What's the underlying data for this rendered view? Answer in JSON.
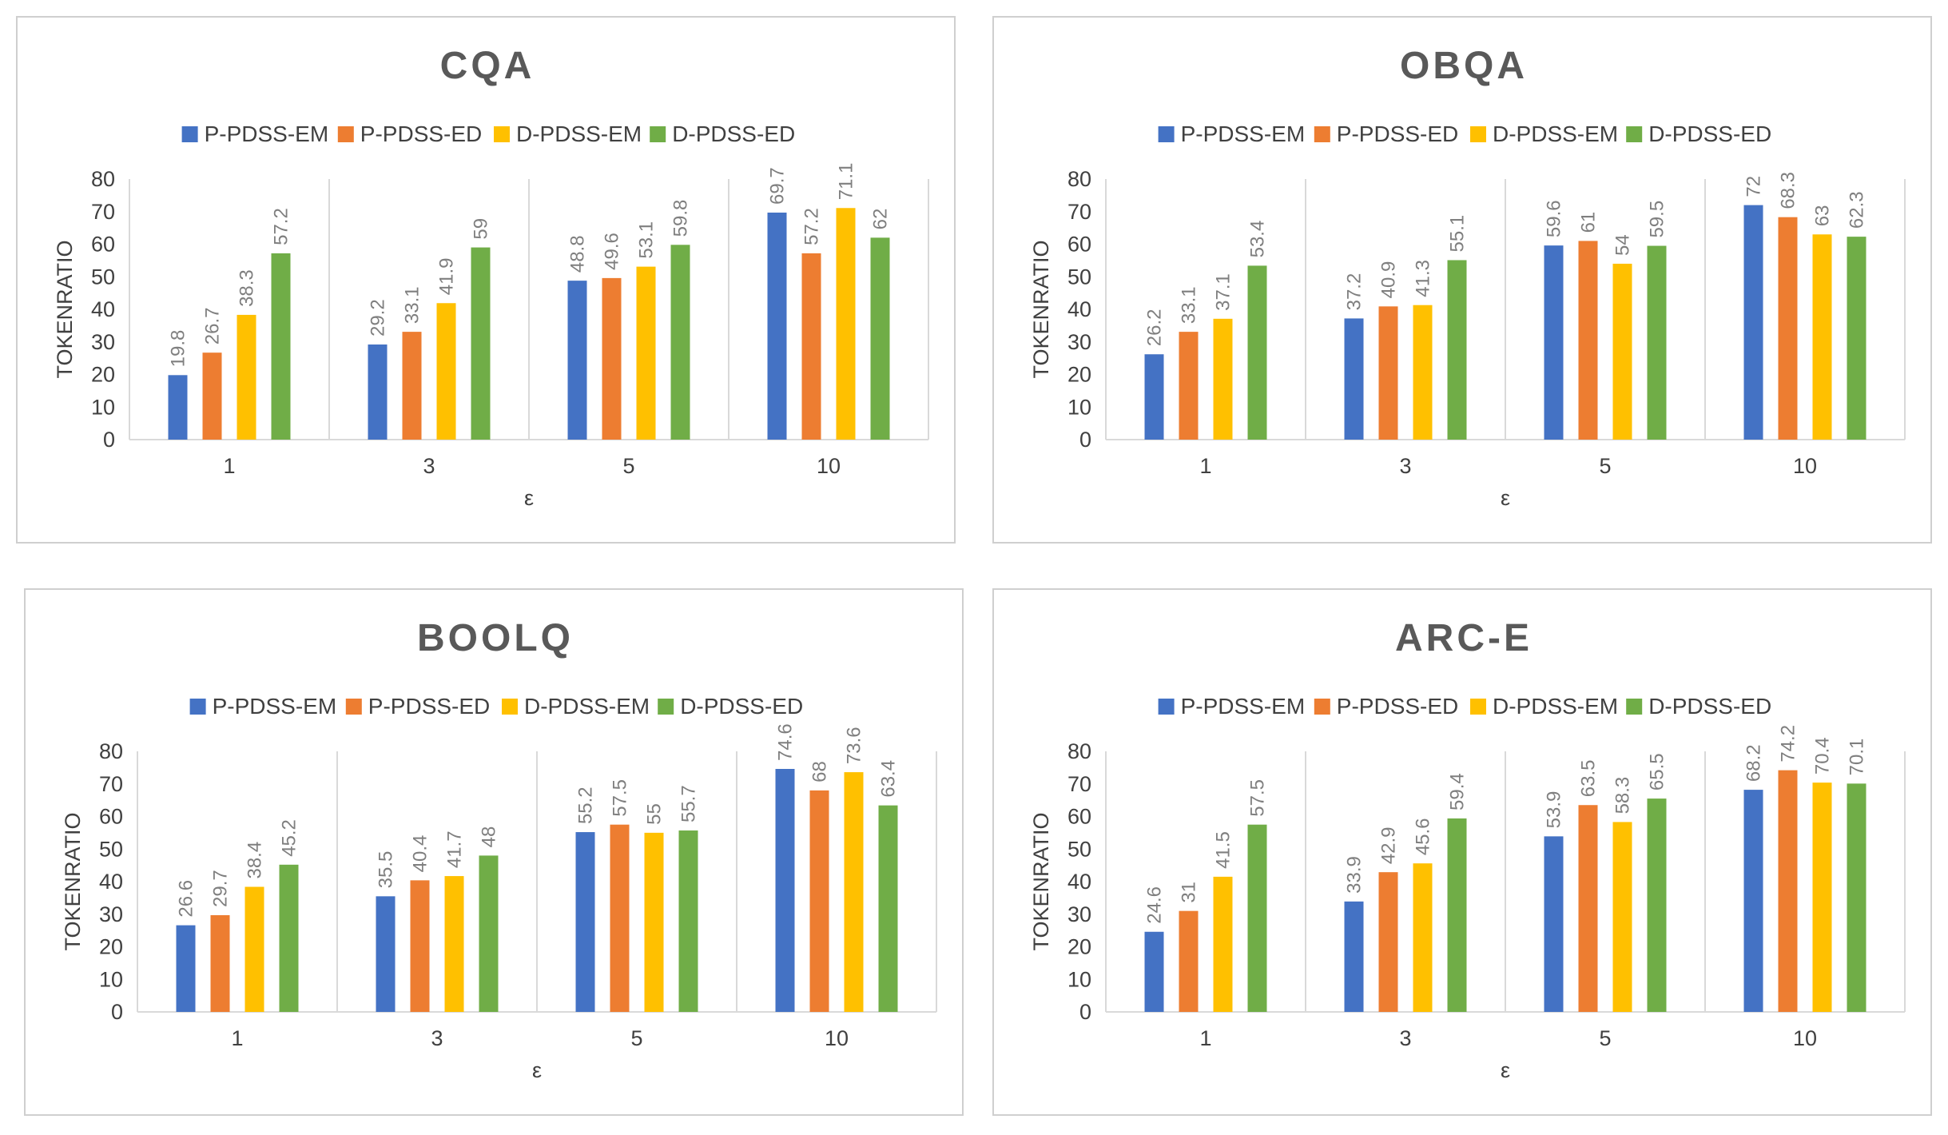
{
  "colors": {
    "P-PDSS-EM": "#4472C4",
    "P-PDSS-ED": "#ED7D31",
    "D-PDSS-EM": "#FFC000",
    "D-PDSS-ED": "#70AD47",
    "title": "#595959",
    "axis_text": "#404040",
    "data_label": "#7f7f7f",
    "grid": "#d9d9d9"
  },
  "chart_data": [
    {
      "type": "bar",
      "title": "CQA",
      "xlabel": "ε",
      "ylabel": "TOKENRATIO",
      "ylim": [
        0,
        80
      ],
      "yticks": [
        "0",
        "10",
        "20",
        "30",
        "40",
        "50",
        "60",
        "70",
        "80"
      ],
      "categories": [
        "1",
        "3",
        "5",
        "10"
      ],
      "legend_position": "top-center",
      "series": [
        {
          "name": "P-PDSS-EM",
          "values": [
            19.8,
            29.2,
            48.8,
            69.7
          ],
          "labels": [
            "19.8",
            "29.2",
            "48.8",
            "69.7"
          ]
        },
        {
          "name": "P-PDSS-ED",
          "values": [
            26.7,
            33.1,
            49.6,
            57.2
          ],
          "labels": [
            "26.7",
            "33.1",
            "49.6",
            "57.2"
          ]
        },
        {
          "name": "D-PDSS-EM",
          "values": [
            38.3,
            41.9,
            53.1,
            71.1
          ],
          "labels": [
            "38.3",
            "41.9",
            "53.1",
            "71.1"
          ]
        },
        {
          "name": "D-PDSS-ED",
          "values": [
            57.2,
            59,
            59.8,
            62
          ],
          "labels": [
            "57.2",
            "59",
            "59.8",
            "62"
          ]
        }
      ]
    },
    {
      "type": "bar",
      "title": "OBQA",
      "xlabel": "ε",
      "ylabel": "TOKENRATIO",
      "ylim": [
        0,
        80
      ],
      "yticks": [
        "0",
        "10",
        "20",
        "30",
        "40",
        "50",
        "60",
        "70",
        "80"
      ],
      "categories": [
        "1",
        "3",
        "5",
        "10"
      ],
      "legend_position": "top-center",
      "series": [
        {
          "name": "P-PDSS-EM",
          "values": [
            26.2,
            37.2,
            59.6,
            72
          ],
          "labels": [
            "26.2",
            "37.2",
            "59.6",
            "72"
          ]
        },
        {
          "name": "P-PDSS-ED",
          "values": [
            33.1,
            40.9,
            61,
            68.3
          ],
          "labels": [
            "33.1",
            "40.9",
            "61",
            "68.3"
          ]
        },
        {
          "name": "D-PDSS-EM",
          "values": [
            37.1,
            41.3,
            54,
            63
          ],
          "labels": [
            "37.1",
            "41.3",
            "54",
            "63"
          ]
        },
        {
          "name": "D-PDSS-ED",
          "values": [
            53.4,
            55.1,
            59.5,
            62.3
          ],
          "labels": [
            "53.4",
            "55.1",
            "59.5",
            "62.3"
          ]
        }
      ]
    },
    {
      "type": "bar",
      "title": "BOOLQ",
      "xlabel": "ε",
      "ylabel": "TOKENRATIO",
      "ylim": [
        0,
        80
      ],
      "yticks": [
        "0",
        "10",
        "20",
        "30",
        "40",
        "50",
        "60",
        "70",
        "80"
      ],
      "categories": [
        "1",
        "3",
        "5",
        "10"
      ],
      "legend_position": "top-center",
      "series": [
        {
          "name": "P-PDSS-EM",
          "values": [
            26.6,
            35.5,
            55.2,
            74.6
          ],
          "labels": [
            "26.6",
            "35.5",
            "55.2",
            "74.6"
          ]
        },
        {
          "name": "P-PDSS-ED",
          "values": [
            29.7,
            40.4,
            57.5,
            68
          ],
          "labels": [
            "29.7",
            "40.4",
            "57.5",
            "68"
          ]
        },
        {
          "name": "D-PDSS-EM",
          "values": [
            38.4,
            41.7,
            55,
            73.6
          ],
          "labels": [
            "38.4",
            "41.7",
            "55",
            "73.6"
          ]
        },
        {
          "name": "D-PDSS-ED",
          "values": [
            45.2,
            48,
            55.7,
            63.4
          ],
          "labels": [
            "45.2",
            "48",
            "55.7",
            "63.4"
          ]
        }
      ]
    },
    {
      "type": "bar",
      "title": "ARC-E",
      "xlabel": "ε",
      "ylabel": "TOKENRATIO",
      "ylim": [
        0,
        80
      ],
      "yticks": [
        "0",
        "10",
        "20",
        "30",
        "40",
        "50",
        "60",
        "70",
        "80"
      ],
      "categories": [
        "1",
        "3",
        "5",
        "10"
      ],
      "legend_position": "top-center",
      "series": [
        {
          "name": "P-PDSS-EM",
          "values": [
            24.6,
            33.9,
            53.9,
            68.2
          ],
          "labels": [
            "24.6",
            "33.9",
            "53.9",
            "68.2"
          ]
        },
        {
          "name": "P-PDSS-ED",
          "values": [
            31,
            42.9,
            63.5,
            74.2
          ],
          "labels": [
            "31",
            "42.9",
            "63.5",
            "74.2"
          ]
        },
        {
          "name": "D-PDSS-EM",
          "values": [
            41.5,
            45.6,
            58.3,
            70.4
          ],
          "labels": [
            "41.5",
            "45.6",
            "58.3",
            "70.4"
          ]
        },
        {
          "name": "D-PDSS-ED",
          "values": [
            57.5,
            59.4,
            65.5,
            70.1
          ],
          "labels": [
            "57.5",
            "59.4",
            "65.5",
            "70.1"
          ]
        }
      ]
    }
  ]
}
